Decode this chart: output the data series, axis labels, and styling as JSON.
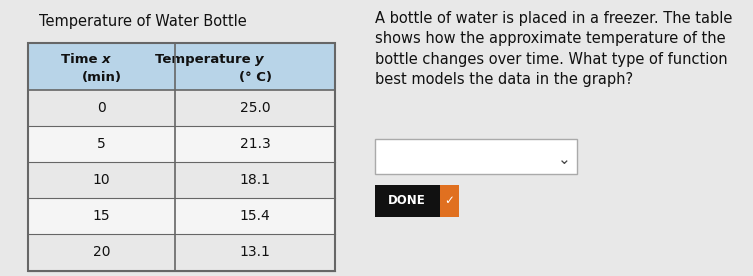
{
  "title": "Temperature of Water Bottle",
  "col1_header_line1": "Time ",
  "col1_header_italic": "x",
  "col1_header_line2": "(min)",
  "col2_header_line1": "Temperature ",
  "col2_header_italic": "y",
  "col2_header_line2": "(° C)",
  "time_values": [
    "0",
    "5",
    "10",
    "15",
    "20"
  ],
  "temp_values": [
    "25.0",
    "21.3",
    "18.1",
    "15.4",
    "13.1"
  ],
  "description": "A bottle of water is placed in a freezer. The table\nshows how the approximate temperature of the\nbottle changes over time. What type of function\nbest models the data in the graph?",
  "done_label": "DONE",
  "header_bg": "#b8d4e8",
  "row_bg_light": "#e8e8e8",
  "row_bg_white": "#f5f5f5",
  "table_border": "#666666",
  "bg_color": "#e8e8e8",
  "title_fontsize": 10.5,
  "header_fontsize": 9.5,
  "data_fontsize": 10,
  "desc_fontsize": 10.5,
  "done_bg": "#111111",
  "done_check_bg": "#e07020",
  "dropdown_border": "#aaaaaa"
}
